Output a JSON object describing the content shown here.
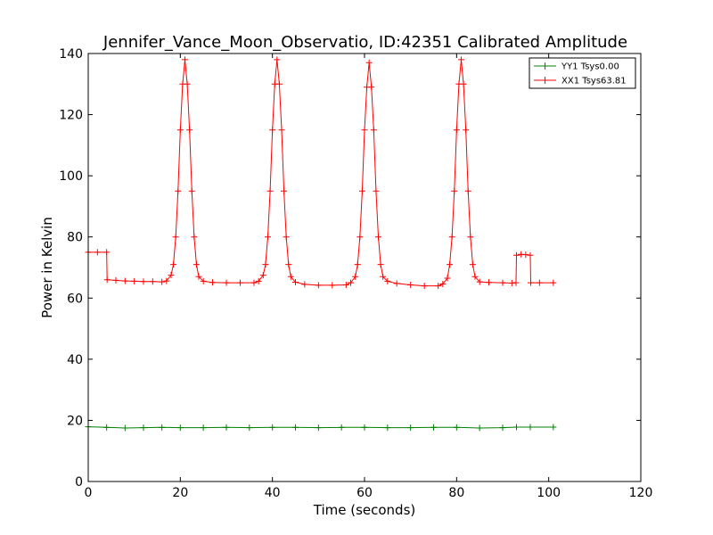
{
  "chart_data": {
    "type": "line",
    "title": "Jennifer_Vance_Moon_Observatio, ID:42351 Calibrated Amplitude",
    "xlabel": "Time (seconds)",
    "ylabel": "Power in Kelvin",
    "xlim": [
      0,
      120
    ],
    "ylim": [
      0,
      140
    ],
    "x_ticks": [
      0,
      20,
      40,
      60,
      80,
      100,
      120
    ],
    "y_ticks": [
      0,
      20,
      40,
      60,
      80,
      100,
      120,
      140
    ],
    "grid": false,
    "legend_position": "top-right",
    "series": [
      {
        "name": "YY1 Tsys0.00",
        "color": "#008000",
        "marker": "+",
        "points": [
          [
            0,
            17.9
          ],
          [
            4,
            17.7
          ],
          [
            8,
            17.5
          ],
          [
            12,
            17.6
          ],
          [
            16,
            17.7
          ],
          [
            20,
            17.6
          ],
          [
            25,
            17.6
          ],
          [
            30,
            17.7
          ],
          [
            35,
            17.6
          ],
          [
            40,
            17.7
          ],
          [
            45,
            17.7
          ],
          [
            50,
            17.6
          ],
          [
            55,
            17.7
          ],
          [
            60,
            17.7
          ],
          [
            65,
            17.6
          ],
          [
            70,
            17.6
          ],
          [
            75,
            17.7
          ],
          [
            80,
            17.7
          ],
          [
            85,
            17.5
          ],
          [
            90,
            17.6
          ],
          [
            93,
            17.8
          ],
          [
            96,
            17.8
          ],
          [
            101,
            17.8
          ]
        ]
      },
      {
        "name": "XX1 Tsys63.81",
        "color": "#ff0000",
        "marker": "+",
        "points": [
          [
            0,
            75
          ],
          [
            2,
            75
          ],
          [
            4,
            75
          ],
          [
            4.1,
            66
          ],
          [
            6,
            65.8
          ],
          [
            8,
            65.6
          ],
          [
            10,
            65.5
          ],
          [
            12,
            65.4
          ],
          [
            14,
            65.4
          ],
          [
            16,
            65.3
          ],
          [
            17,
            65.6
          ],
          [
            18,
            67.5
          ],
          [
            18.5,
            71
          ],
          [
            19,
            80
          ],
          [
            19.5,
            95
          ],
          [
            20,
            115
          ],
          [
            20.5,
            130
          ],
          [
            21,
            138
          ],
          [
            21.5,
            130
          ],
          [
            22,
            115
          ],
          [
            22.5,
            95
          ],
          [
            23,
            80
          ],
          [
            23.5,
            71
          ],
          [
            24,
            67
          ],
          [
            25,
            65.5
          ],
          [
            27,
            65.1
          ],
          [
            30,
            65
          ],
          [
            33,
            65
          ],
          [
            36,
            65
          ],
          [
            37,
            65.5
          ],
          [
            38,
            67.5
          ],
          [
            38.5,
            71
          ],
          [
            39,
            80
          ],
          [
            39.5,
            95
          ],
          [
            40,
            115
          ],
          [
            40.5,
            130
          ],
          [
            41,
            138
          ],
          [
            41.5,
            130
          ],
          [
            42,
            115
          ],
          [
            42.5,
            95
          ],
          [
            43,
            80
          ],
          [
            43.5,
            71
          ],
          [
            44,
            67
          ],
          [
            45,
            65.2
          ],
          [
            47,
            64.5
          ],
          [
            50,
            64.2
          ],
          [
            53,
            64.2
          ],
          [
            56,
            64.3
          ],
          [
            57,
            65
          ],
          [
            58,
            67
          ],
          [
            58.5,
            71
          ],
          [
            59,
            80
          ],
          [
            59.5,
            95
          ],
          [
            60,
            115
          ],
          [
            60.5,
            129
          ],
          [
            61,
            137
          ],
          [
            61.5,
            129
          ],
          [
            62,
            115
          ],
          [
            62.5,
            95
          ],
          [
            63,
            80
          ],
          [
            63.5,
            71
          ],
          [
            64,
            67
          ],
          [
            65,
            65.5
          ],
          [
            67,
            64.8
          ],
          [
            70,
            64.3
          ],
          [
            73,
            64
          ],
          [
            76,
            64
          ],
          [
            77,
            64.6
          ],
          [
            78,
            66.5
          ],
          [
            78.5,
            71
          ],
          [
            79,
            80
          ],
          [
            79.5,
            95
          ],
          [
            80,
            115
          ],
          [
            80.5,
            130
          ],
          [
            81,
            138
          ],
          [
            81.5,
            130
          ],
          [
            82,
            115
          ],
          [
            82.5,
            95
          ],
          [
            83,
            80
          ],
          [
            83.5,
            71
          ],
          [
            84,
            67
          ],
          [
            85,
            65.3
          ],
          [
            87,
            65.1
          ],
          [
            90,
            65
          ],
          [
            92,
            64.9
          ],
          [
            92.9,
            65
          ],
          [
            93,
            74
          ],
          [
            94,
            74.3
          ],
          [
            95,
            74.2
          ],
          [
            96,
            74
          ],
          [
            96.1,
            65
          ],
          [
            98,
            65
          ],
          [
            101,
            65
          ]
        ]
      }
    ]
  }
}
